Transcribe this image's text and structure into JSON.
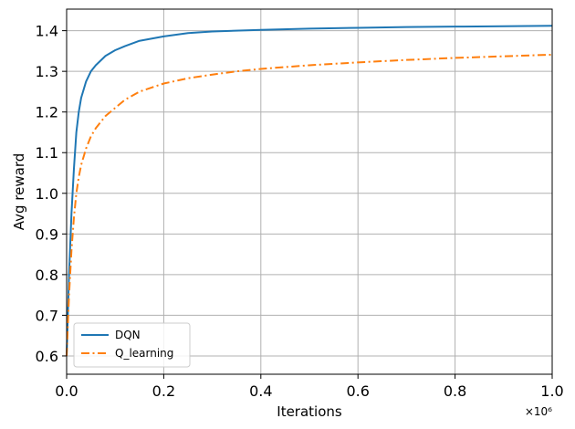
{
  "chart_data": {
    "type": "line",
    "xlabel": "Iterations",
    "ylabel": "Avg reward",
    "x_offset_label": "×10⁶",
    "xlim": [
      0,
      1.0
    ],
    "ylim": [
      0.555,
      1.453
    ],
    "x_ticks": [
      0.0,
      0.2,
      0.4,
      0.6,
      0.8,
      1.0
    ],
    "x_tick_labels": [
      "0.0",
      "0.2",
      "0.4",
      "0.6",
      "0.8",
      "1.0"
    ],
    "y_ticks": [
      0.6,
      0.7,
      0.8,
      0.9,
      1.0,
      1.1,
      1.2,
      1.3,
      1.4
    ],
    "y_tick_labels": [
      "0.6",
      "0.7",
      "0.8",
      "0.9",
      "1.0",
      "1.1",
      "1.2",
      "1.3",
      "1.4"
    ],
    "grid": true,
    "legend_position": "lower-left",
    "series": [
      {
        "name": "DQN",
        "color": "#1f77b4",
        "style": "solid",
        "x": [
          0.0,
          0.005,
          0.01,
          0.015,
          0.02,
          0.025,
          0.03,
          0.04,
          0.05,
          0.06,
          0.08,
          0.1,
          0.12,
          0.15,
          0.2,
          0.25,
          0.3,
          0.4,
          0.5,
          0.6,
          0.7,
          0.8,
          0.9,
          1.0
        ],
        "y": [
          0.6,
          0.8,
          0.95,
          1.06,
          1.15,
          1.2,
          1.235,
          1.275,
          1.3,
          1.315,
          1.338,
          1.352,
          1.362,
          1.375,
          1.386,
          1.394,
          1.398,
          1.402,
          1.405,
          1.407,
          1.409,
          1.41,
          1.411,
          1.412
        ]
      },
      {
        "name": "Q_learning",
        "color": "#ff7f0e",
        "style": "dashdot",
        "x": [
          0.0,
          0.005,
          0.01,
          0.015,
          0.02,
          0.025,
          0.03,
          0.04,
          0.05,
          0.06,
          0.08,
          0.1,
          0.12,
          0.15,
          0.2,
          0.25,
          0.3,
          0.35,
          0.4,
          0.5,
          0.6,
          0.7,
          0.8,
          0.9,
          1.0
        ],
        "y": [
          0.6,
          0.75,
          0.86,
          0.94,
          1.0,
          1.04,
          1.07,
          1.11,
          1.14,
          1.16,
          1.19,
          1.21,
          1.23,
          1.25,
          1.27,
          1.283,
          1.292,
          1.3,
          1.306,
          1.315,
          1.322,
          1.328,
          1.333,
          1.337,
          1.341
        ]
      }
    ]
  }
}
